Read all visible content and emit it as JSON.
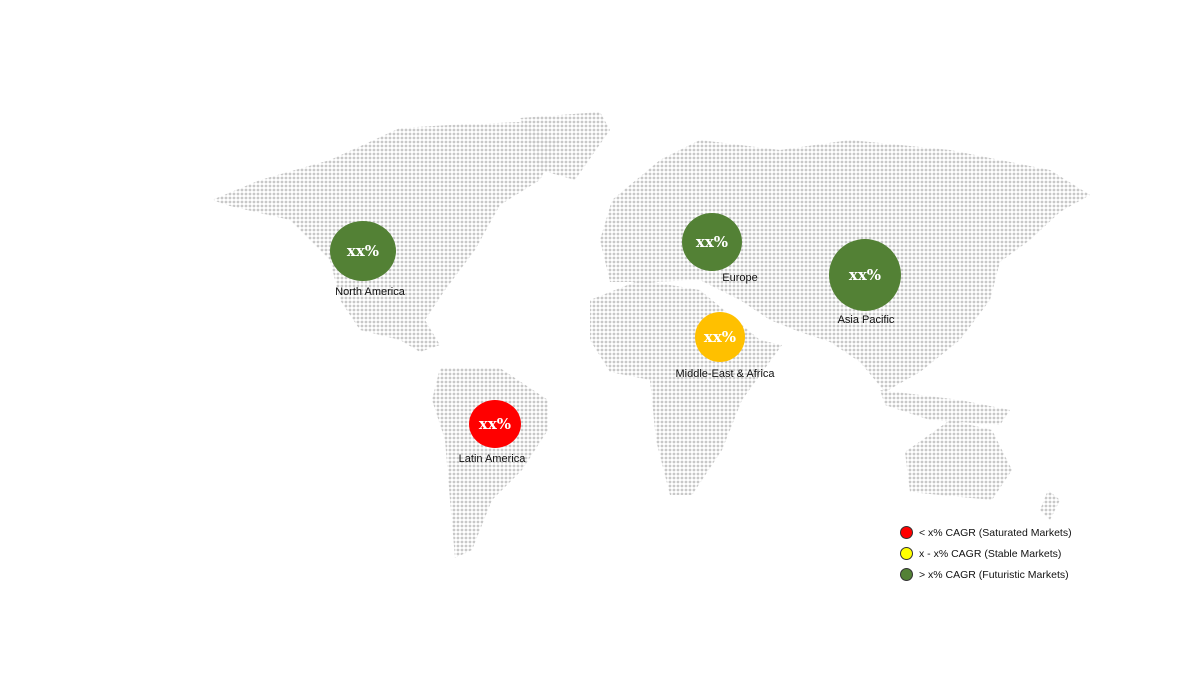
{
  "regions": [
    {
      "name": "North America",
      "value": "xx%",
      "color": "#538135"
    },
    {
      "name": "Europe",
      "value": "xx%",
      "color": "#538135"
    },
    {
      "name": "Asia Pacific",
      "value": "xx%",
      "color": "#538135"
    },
    {
      "name": "Middle-East & Africa",
      "value": "xx%",
      "color": "#FFC000"
    },
    {
      "name": "Latin America",
      "value": "xx%",
      "color": "#FF0000"
    }
  ],
  "legend": [
    {
      "label": "< x% CAGR (Saturated Markets)",
      "color": "#FF0000"
    },
    {
      "label": "x - x% CAGR (Stable Markets)",
      "color": "#FFFF00"
    },
    {
      "label": "> x% CAGR (Futuristic Markets)",
      "color": "#538135"
    }
  ],
  "map_dot_color": "#C8C8C8"
}
